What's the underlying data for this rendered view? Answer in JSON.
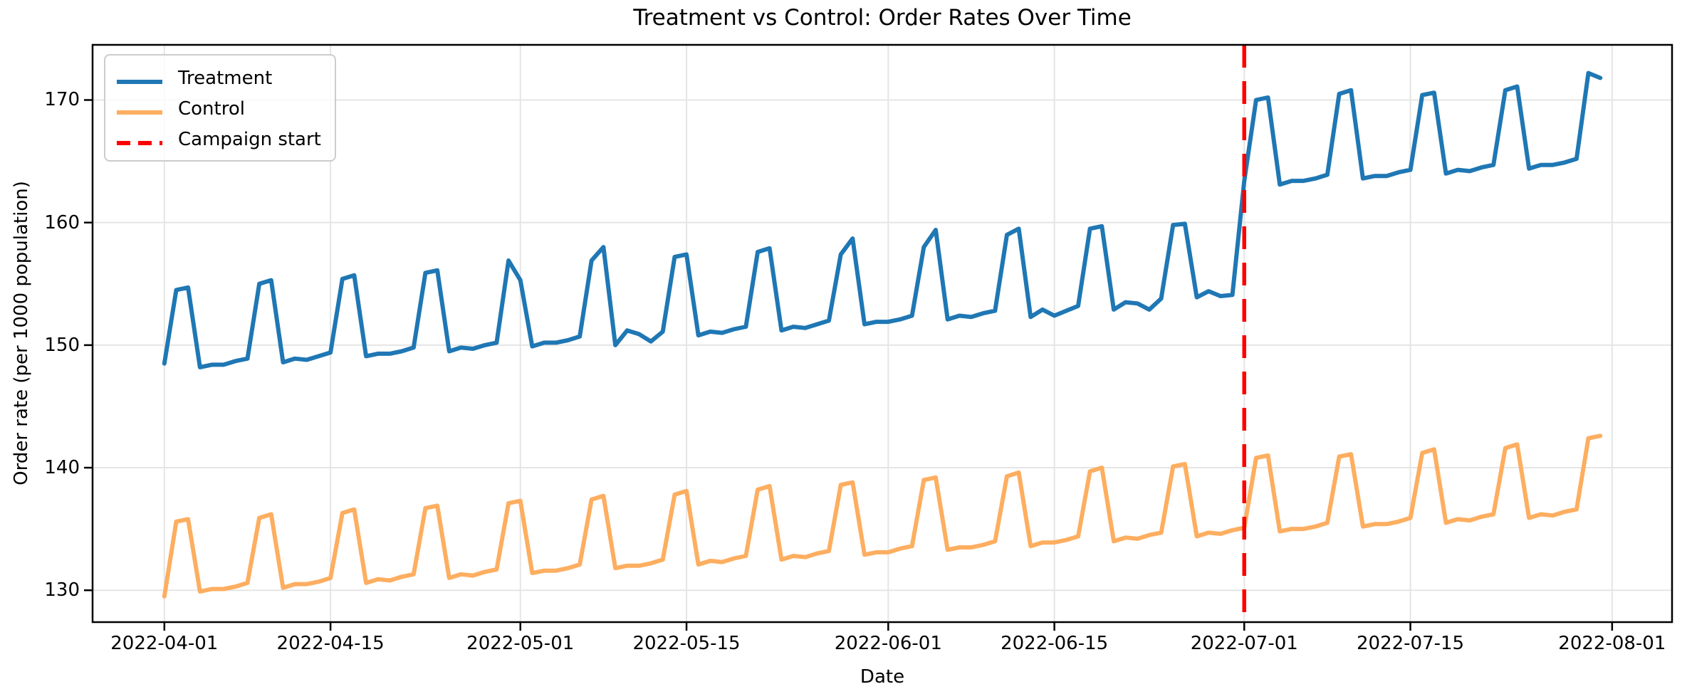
{
  "figure": {
    "title": "Treatment vs Control: Order Rates Over Time",
    "xlabel": "Date",
    "ylabel": "Order rate (per 1000 population)"
  },
  "legend": {
    "position": "upper left",
    "items": [
      {
        "label": "Treatment",
        "color": "#1f77b4",
        "style": "solid"
      },
      {
        "label": "Control",
        "color": "#fdae60",
        "style": "solid"
      },
      {
        "label": "Campaign start",
        "color": "#ff0000",
        "style": "dashed"
      }
    ]
  },
  "chart_data": {
    "type": "line",
    "title": "Treatment vs Control: Order Rates Over Time",
    "xlabel": "Date",
    "ylabel": "Order rate (per 1000 population)",
    "grid": true,
    "legend_position": "upper left",
    "ylim": [
      127.4,
      174.5
    ],
    "xlim_days": [
      -6.05,
      127.05
    ],
    "y_ticks": [
      130,
      140,
      150,
      160,
      170
    ],
    "x_tick_labels": [
      "2022-04-01",
      "2022-04-15",
      "2022-05-01",
      "2022-05-15",
      "2022-06-01",
      "2022-06-15",
      "2022-07-01",
      "2022-07-15",
      "2022-08-01"
    ],
    "x_tick_day_indices": [
      0,
      14,
      30,
      44,
      61,
      75,
      91,
      105,
      122
    ],
    "campaign_line": {
      "label": "Campaign start",
      "date": "2022-07-01",
      "day_index": 91,
      "color": "#ff0000",
      "style": "dashed"
    },
    "dates": [
      "2022-04-01",
      "2022-04-02",
      "2022-04-03",
      "2022-04-04",
      "2022-04-05",
      "2022-04-06",
      "2022-04-07",
      "2022-04-08",
      "2022-04-09",
      "2022-04-10",
      "2022-04-11",
      "2022-04-12",
      "2022-04-13",
      "2022-04-14",
      "2022-04-15",
      "2022-04-16",
      "2022-04-17",
      "2022-04-18",
      "2022-04-19",
      "2022-04-20",
      "2022-04-21",
      "2022-04-22",
      "2022-04-23",
      "2022-04-24",
      "2022-04-25",
      "2022-04-26",
      "2022-04-27",
      "2022-04-28",
      "2022-04-29",
      "2022-04-30",
      "2022-05-01",
      "2022-05-02",
      "2022-05-03",
      "2022-05-04",
      "2022-05-05",
      "2022-05-06",
      "2022-05-07",
      "2022-05-08",
      "2022-05-09",
      "2022-05-10",
      "2022-05-11",
      "2022-05-12",
      "2022-05-13",
      "2022-05-14",
      "2022-05-15",
      "2022-05-16",
      "2022-05-17",
      "2022-05-18",
      "2022-05-19",
      "2022-05-20",
      "2022-05-21",
      "2022-05-22",
      "2022-05-23",
      "2022-05-24",
      "2022-05-25",
      "2022-05-26",
      "2022-05-27",
      "2022-05-28",
      "2022-05-29",
      "2022-05-30",
      "2022-05-31",
      "2022-06-01",
      "2022-06-02",
      "2022-06-03",
      "2022-06-04",
      "2022-06-05",
      "2022-06-06",
      "2022-06-07",
      "2022-06-08",
      "2022-06-09",
      "2022-06-10",
      "2022-06-11",
      "2022-06-12",
      "2022-06-13",
      "2022-06-14",
      "2022-06-15",
      "2022-06-16",
      "2022-06-17",
      "2022-06-18",
      "2022-06-19",
      "2022-06-20",
      "2022-06-21",
      "2022-06-22",
      "2022-06-23",
      "2022-06-24",
      "2022-06-25",
      "2022-06-26",
      "2022-06-27",
      "2022-06-28",
      "2022-06-29",
      "2022-06-30",
      "2022-07-01",
      "2022-07-02",
      "2022-07-03",
      "2022-07-04",
      "2022-07-05",
      "2022-07-06",
      "2022-07-07",
      "2022-07-08",
      "2022-07-09",
      "2022-07-10",
      "2022-07-11",
      "2022-07-12",
      "2022-07-13",
      "2022-07-14",
      "2022-07-15",
      "2022-07-16",
      "2022-07-17",
      "2022-07-18",
      "2022-07-19",
      "2022-07-20",
      "2022-07-21",
      "2022-07-22",
      "2022-07-23",
      "2022-07-24",
      "2022-07-25",
      "2022-07-26",
      "2022-07-27",
      "2022-07-28",
      "2022-07-29",
      "2022-07-30",
      "2022-07-31"
    ],
    "series": [
      {
        "name": "Treatment",
        "color": "#1f77b4",
        "values": [
          148.5,
          154.5,
          154.7,
          148.2,
          148.4,
          148.4,
          148.7,
          148.9,
          155.0,
          155.3,
          148.6,
          148.9,
          148.8,
          149.1,
          149.4,
          155.4,
          155.7,
          149.1,
          149.3,
          149.3,
          149.5,
          149.8,
          155.9,
          156.1,
          149.5,
          149.8,
          149.7,
          150.0,
          150.2,
          156.9,
          155.3,
          149.9,
          150.2,
          150.2,
          150.4,
          150.7,
          156.9,
          158.0,
          150.0,
          151.2,
          150.9,
          150.3,
          151.1,
          157.2,
          157.4,
          150.8,
          151.1,
          151.0,
          151.3,
          151.5,
          157.6,
          157.9,
          151.2,
          151.5,
          151.4,
          151.7,
          152.0,
          157.4,
          158.7,
          151.7,
          151.9,
          151.9,
          152.1,
          152.4,
          158.0,
          159.4,
          152.1,
          152.4,
          152.3,
          152.6,
          152.8,
          159.0,
          159.5,
          152.3,
          152.9,
          152.4,
          152.8,
          153.2,
          159.5,
          159.7,
          152.9,
          153.5,
          153.4,
          152.9,
          153.8,
          159.8,
          159.9,
          153.9,
          154.4,
          154.0,
          154.1,
          163.4,
          170.0,
          170.2,
          163.1,
          163.4,
          163.4,
          163.6,
          163.9,
          170.5,
          170.8,
          163.6,
          163.8,
          163.8,
          164.1,
          164.3,
          170.4,
          170.6,
          164.0,
          164.3,
          164.2,
          164.5,
          164.7,
          170.8,
          171.1,
          164.4,
          164.7,
          164.7,
          164.9,
          165.2,
          172.2,
          171.8
        ]
      },
      {
        "name": "Control",
        "color": "#fdae60",
        "values": [
          129.5,
          135.6,
          135.8,
          129.9,
          130.1,
          130.1,
          130.3,
          130.6,
          135.9,
          136.2,
          130.2,
          130.5,
          130.5,
          130.7,
          131.0,
          136.3,
          136.6,
          130.6,
          130.9,
          130.8,
          131.1,
          131.3,
          136.7,
          136.9,
          131.0,
          131.3,
          131.2,
          131.5,
          131.7,
          137.1,
          137.3,
          131.4,
          131.6,
          131.6,
          131.8,
          132.1,
          137.4,
          137.7,
          131.8,
          132.0,
          132.0,
          132.2,
          132.5,
          137.8,
          138.1,
          132.1,
          132.4,
          132.3,
          132.6,
          132.8,
          138.2,
          138.5,
          132.5,
          132.8,
          132.7,
          133.0,
          133.2,
          138.6,
          138.8,
          132.9,
          133.1,
          133.1,
          133.4,
          133.6,
          139.0,
          139.2,
          133.3,
          133.5,
          133.5,
          133.7,
          134.0,
          139.3,
          139.6,
          133.6,
          133.9,
          133.9,
          134.1,
          134.4,
          139.7,
          140.0,
          134.0,
          134.3,
          134.2,
          134.5,
          134.7,
          140.1,
          140.3,
          134.4,
          134.7,
          134.6,
          134.9,
          135.1,
          140.8,
          141.0,
          134.8,
          135.0,
          135.0,
          135.2,
          135.5,
          140.9,
          141.1,
          135.2,
          135.4,
          135.4,
          135.6,
          135.9,
          141.2,
          141.5,
          135.5,
          135.8,
          135.7,
          136.0,
          136.2,
          141.6,
          141.9,
          135.9,
          136.2,
          136.1,
          136.4,
          136.6,
          142.4,
          142.6
        ]
      }
    ]
  }
}
